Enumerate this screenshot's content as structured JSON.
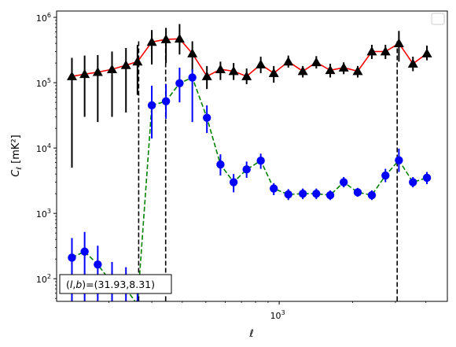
{
  "chart_data": {
    "type": "scatter",
    "title": "",
    "xlabel": "ℓ",
    "ylabel": "C_ℓ [mK²]",
    "xscale": "log",
    "yscale": "log",
    "xlim": [
      122,
      4900
    ],
    "ylim": [
      45,
      1250000
    ],
    "x_ticks": [
      {
        "value": 1000,
        "label": "10^3"
      }
    ],
    "y_ticks": [
      {
        "value": 100,
        "label": "10^2"
      },
      {
        "value": 1000,
        "label": "10^3"
      },
      {
        "value": 10000,
        "label": "10^4"
      },
      {
        "value": 100000,
        "label": "10^5"
      },
      {
        "value": 1000000,
        "label": "10^6"
      }
    ],
    "grid": false,
    "legend": {
      "placement": "top-right",
      "entries": []
    },
    "vlines": [
      265,
      342,
      3050
    ],
    "annotation": {
      "text": "(l,b)=(31.93,8.31)",
      "placement": "bottom-left"
    },
    "series": [
      {
        "marker": "triangle",
        "marker_color": "#000000",
        "line_color": "#ff0000",
        "line_style": "solid",
        "x": [
          141,
          159,
          180,
          206,
          235,
          262,
          300,
          343,
          390,
          440,
          505,
          574,
          650,
          735,
          840,
          950,
          1090,
          1250,
          1420,
          1620,
          1840,
          2100,
          2400,
          2730,
          3100,
          3540,
          4040
        ],
        "y": [
          125000,
          135000,
          145000,
          160000,
          185000,
          210000,
          420000,
          460000,
          470000,
          280000,
          125000,
          160000,
          150000,
          125000,
          190000,
          140000,
          210000,
          150000,
          205000,
          155000,
          170000,
          150000,
          300000,
          300000,
          400000,
          195000,
          280000
        ],
        "y_low": [
          5000,
          30000,
          25000,
          30000,
          35000,
          65000,
          190000,
          200000,
          270000,
          150000,
          80000,
          110000,
          110000,
          95000,
          140000,
          100000,
          170000,
          120000,
          165000,
          120000,
          135000,
          120000,
          230000,
          230000,
          210000,
          150000,
          220000
        ],
        "y_high": [
          240000,
          260000,
          265000,
          300000,
          340000,
          380000,
          640000,
          690000,
          790000,
          430000,
          180000,
          210000,
          200000,
          165000,
          250000,
          180000,
          260000,
          180000,
          255000,
          195000,
          205000,
          180000,
          380000,
          380000,
          620000,
          250000,
          370000
        ]
      },
      {
        "marker": "circle",
        "marker_color": "#0000ff",
        "line_color": "#008000",
        "line_style": "dashed",
        "x": [
          141,
          159,
          180,
          206,
          235,
          262,
          300,
          343,
          390,
          440,
          505,
          574,
          650,
          735,
          840,
          950,
          1090,
          1250,
          1420,
          1620,
          1840,
          2100,
          2400,
          2730,
          3100,
          3540,
          4040
        ],
        "y": [
          210,
          260,
          165,
          85,
          70,
          40,
          45000,
          52000,
          98000,
          120000,
          29000,
          5600,
          3000,
          4700,
          6400,
          2400,
          1950,
          2000,
          2000,
          1900,
          3000,
          2100,
          1900,
          3800,
          6500,
          3000,
          3500
        ],
        "y_low": [
          45,
          45,
          45,
          45,
          45,
          45,
          14000,
          28000,
          50000,
          25000,
          17000,
          3800,
          2100,
          3500,
          4800,
          1900,
          1600,
          1650,
          1650,
          1600,
          2500,
          1800,
          1600,
          3000,
          4300,
          2500,
          2800
        ],
        "y_high": [
          420,
          520,
          320,
          180,
          150,
          90,
          90000,
          95000,
          170000,
          160000,
          45000,
          8000,
          4000,
          6200,
          8200,
          2900,
          2350,
          2400,
          2400,
          2250,
          3600,
          2450,
          2250,
          4800,
          9800,
          3600,
          4300
        ]
      }
    ]
  }
}
